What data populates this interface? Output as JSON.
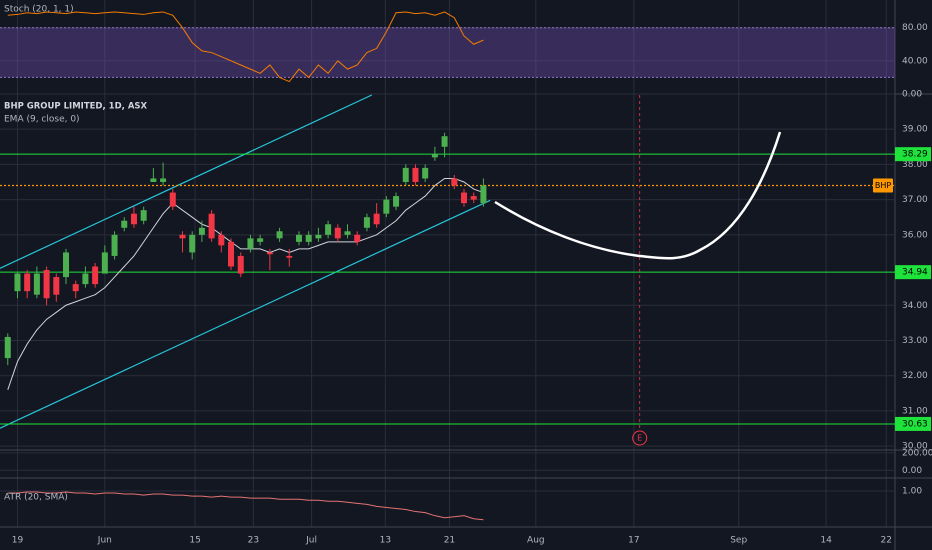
{
  "header": {
    "symbol": "BHP GROUP LIMITED, 1D, ASX",
    "ema_label": "EMA (9, close, 0)"
  },
  "chart_data": [
    {
      "type": "candlestick",
      "xlim": [
        -0.8,
        91.4
      ],
      "xticks": [
        {
          "value": 1,
          "label": "19"
        },
        {
          "value": 10,
          "label": "Jun"
        },
        {
          "value": 19.3,
          "label": "15"
        },
        {
          "value": 25.3,
          "label": "23"
        },
        {
          "value": 31.3,
          "label": "Jul"
        },
        {
          "value": 38.9,
          "label": "13"
        },
        {
          "value": 45.5,
          "label": "21"
        },
        {
          "value": 54.4,
          "label": "Aug"
        },
        {
          "value": 64.5,
          "label": "17"
        },
        {
          "value": 75.3,
          "label": "Sep"
        },
        {
          "value": 84.3,
          "label": "14"
        },
        {
          "value": 90.5,
          "label": "22"
        }
      ],
      "ylim": [
        29.89,
        39.97
      ],
      "yticks": [
        {
          "value": 39,
          "label": "39.00"
        },
        {
          "value": 38,
          "label": "38.00"
        },
        {
          "value": 37,
          "label": "37.00"
        },
        {
          "value": 36,
          "label": "36.00"
        },
        {
          "value": 34,
          "label": "34.00"
        },
        {
          "value": 33,
          "label": "33.00"
        },
        {
          "value": 32,
          "label": "32.00"
        },
        {
          "value": 31,
          "label": "31.00"
        },
        {
          "value": 30,
          "label": "30.00"
        }
      ],
      "grid": true,
      "up_color": "#4caf50",
      "down_color": "#f23645",
      "candles": {
        "x": [
          0,
          1,
          2,
          3,
          4,
          5,
          6,
          7,
          8,
          9,
          10,
          11,
          12,
          13,
          14,
          15,
          16,
          17,
          18,
          19,
          20,
          21,
          22,
          23,
          24,
          25,
          26,
          27,
          28,
          29,
          30,
          31,
          32,
          33,
          34,
          35,
          36,
          37,
          38,
          39,
          40,
          41,
          42,
          43,
          44,
          45,
          46,
          47,
          48,
          49
        ],
        "open": [
          32.5,
          34.4,
          34.9,
          34.3,
          35.0,
          34.8,
          34.8,
          34.6,
          34.6,
          35.1,
          34.9,
          35.4,
          36.2,
          36.6,
          36.4,
          37.5,
          37.5,
          37.2,
          36.0,
          35.5,
          36.0,
          36.6,
          36.0,
          35.8,
          35.4,
          35.6,
          35.8,
          35.5,
          35.9,
          35.4,
          35.8,
          35.8,
          35.9,
          36.0,
          36.2,
          36.0,
          36.0,
          36.2,
          36.6,
          36.6,
          36.8,
          37.5,
          37.9,
          37.6,
          38.2,
          38.5,
          37.6,
          37.2,
          37.1,
          36.9
        ],
        "high": [
          33.2,
          34.95,
          35.0,
          35.1,
          35.1,
          34.9,
          35.6,
          34.7,
          35.1,
          35.2,
          35.7,
          36.1,
          36.5,
          36.8,
          36.8,
          37.9,
          38.05,
          37.3,
          36.1,
          36.1,
          36.4,
          36.7,
          36.1,
          35.9,
          35.5,
          36.0,
          36.0,
          35.6,
          36.2,
          35.6,
          36.1,
          36.1,
          36.2,
          36.4,
          36.3,
          36.3,
          36.1,
          36.6,
          36.9,
          37.1,
          37.2,
          38.0,
          38.0,
          38.0,
          38.5,
          38.9,
          37.7,
          37.3,
          37.2,
          37.6
        ],
        "low": [
          32.3,
          34.2,
          34.2,
          34.2,
          34.0,
          34.1,
          34.6,
          34.2,
          34.5,
          34.5,
          34.9,
          35.3,
          36.1,
          36.2,
          36.3,
          37.5,
          37.4,
          36.7,
          35.5,
          35.3,
          35.8,
          35.8,
          35.5,
          35.0,
          34.8,
          35.5,
          35.7,
          35.0,
          35.8,
          35.1,
          35.7,
          35.7,
          35.8,
          35.9,
          35.8,
          35.9,
          35.7,
          36.1,
          36.2,
          36.5,
          36.7,
          37.4,
          37.4,
          37.5,
          38.1,
          38.2,
          37.3,
          36.8,
          36.9,
          36.8
        ],
        "close": [
          33.1,
          34.9,
          34.4,
          34.9,
          34.2,
          34.3,
          35.5,
          34.4,
          34.9,
          34.6,
          35.5,
          36.0,
          36.4,
          36.3,
          36.7,
          37.6,
          37.6,
          36.8,
          35.9,
          36.0,
          36.2,
          35.9,
          35.7,
          35.1,
          34.9,
          35.9,
          35.9,
          35.45,
          36.1,
          35.35,
          36.0,
          36.0,
          36.0,
          36.3,
          35.9,
          36.1,
          35.8,
          36.5,
          36.3,
          37.0,
          37.1,
          37.9,
          37.5,
          37.9,
          38.3,
          38.8,
          37.4,
          36.9,
          37.0,
          37.4
        ]
      },
      "ema": {
        "color": "#d1d4dc",
        "values": [
          31.6,
          32.4,
          32.9,
          33.3,
          33.6,
          33.8,
          34.0,
          34.1,
          34.2,
          34.3,
          34.5,
          34.8,
          35.1,
          35.4,
          35.8,
          36.2,
          36.6,
          36.9,
          36.7,
          36.5,
          36.3,
          36.2,
          36.0,
          35.8,
          35.6,
          35.6,
          35.6,
          35.5,
          35.6,
          35.5,
          35.6,
          35.6,
          35.7,
          35.8,
          35.8,
          35.8,
          35.8,
          35.9,
          36.0,
          36.2,
          36.4,
          36.7,
          36.9,
          37.1,
          37.4,
          37.6,
          37.6,
          37.5,
          37.3,
          37.2
        ]
      },
      "levels": [
        38.29,
        34.94,
        30.63
      ],
      "level_color": "#1ee33a",
      "last_price": {
        "value": 37.4,
        "label": "BHP",
        "color": "#ff9800"
      },
      "channel": {
        "color": "#26c6da",
        "lines": [
          [
            [
              -0.8,
              35.05
            ],
            [
              37.5,
              39.97
            ]
          ],
          [
            [
              -0.8,
              30.51
            ],
            [
              49.7,
              36.98
            ]
          ]
        ]
      },
      "event": {
        "x": 65.1,
        "label": "E",
        "color": "#f23645"
      }
    },
    {
      "type": "line",
      "title": "Stoch (20, 1, 1)",
      "color": "#f57c00",
      "ylim": [
        0,
        111
      ],
      "yticks": [
        {
          "value": 80,
          "label": "80.00"
        },
        {
          "value": 40,
          "label": "40.00"
        },
        {
          "value": 0,
          "label": "0.00"
        }
      ],
      "band": [
        20,
        80
      ],
      "band_color": "#7e57c2",
      "values": [
        95,
        96,
        98,
        97,
        99,
        98,
        97,
        99,
        98,
        97,
        98,
        99,
        98,
        97,
        96,
        98,
        99,
        95,
        80,
        62,
        52,
        50,
        45,
        40,
        35,
        30,
        25,
        35,
        20,
        15,
        30,
        20,
        35,
        25,
        40,
        30,
        35,
        50,
        55,
        75,
        98,
        99,
        97,
        98,
        95,
        99,
        92,
        70,
        60,
        65
      ]
    },
    {
      "type": "axis",
      "ylim": [
        -89,
        233
      ],
      "yticks": [
        {
          "value": 200,
          "label": "200.00"
        },
        {
          "value": 0,
          "label": "0.00"
        }
      ]
    },
    {
      "type": "line",
      "title": "ATR (20, SMA)",
      "color": "#e57373",
      "ylim": [
        0.65,
        1.126
      ],
      "yticks": [
        {
          "value": 1,
          "label": "1.00"
        }
      ],
      "values": [
        0.98,
        0.98,
        0.99,
        0.99,
        0.98,
        0.98,
        0.99,
        0.98,
        0.98,
        0.97,
        0.98,
        0.98,
        0.97,
        0.97,
        0.96,
        0.97,
        0.97,
        0.96,
        0.96,
        0.95,
        0.95,
        0.94,
        0.95,
        0.94,
        0.94,
        0.93,
        0.93,
        0.93,
        0.92,
        0.92,
        0.92,
        0.91,
        0.91,
        0.9,
        0.9,
        0.89,
        0.88,
        0.87,
        0.85,
        0.84,
        0.83,
        0.82,
        0.8,
        0.79,
        0.76,
        0.74,
        0.75,
        0.76,
        0.73,
        0.72
      ]
    }
  ]
}
